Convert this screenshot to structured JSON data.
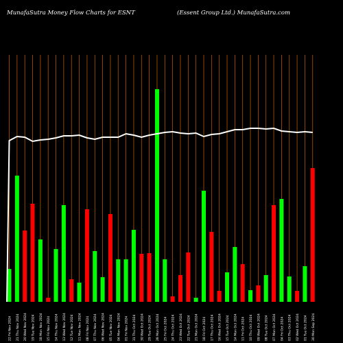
{
  "header": {
    "left": "MunafaSutra  Money Flow  Charts for ESNT",
    "right": "(Essent Group Ltd.) MunafaSutra.com"
  },
  "colors": {
    "background": "#000000",
    "up": "#00ff00",
    "down": "#ff0000",
    "gridline": "#b35900",
    "price_line": "#ffffff"
  },
  "chart_data": {
    "type": "bar",
    "title": "MunafaSutra Money Flow Charts for ESNT",
    "categories": [
      "22 Fri Nov 2024",
      "21 Thu Nov 2024",
      "20 Wed Nov 2024",
      "19 Tue Nov 2024",
      "18 Mon Nov 2024",
      "15 Fri Nov 2024",
      "14 Thu Nov 2024",
      "13 Wed Nov 2024",
      "12 Tue Nov 2024",
      "11 Mon Nov 2024",
      "08 Fri Nov 2024",
      "07 Thu Nov 2024",
      "06 Wed Nov 2024",
      "05 Tue Nov 2024",
      "04 Mon Nov 2024",
      "01 Fri Nov 2024",
      "31 Thu Oct 2024",
      "30 Wed Oct 2024",
      "29 Tue Oct 2024",
      "28 Mon Oct 2024",
      "25 Fri Oct 2024",
      "24 Thu Oct 2024",
      "23 Wed Oct 2024",
      "22 Tue Oct 2024",
      "21 Mon Oct 2024",
      "18 Fri Oct 2024",
      "17 Thu Oct 2024",
      "16 Wed Oct 2024",
      "15 Tue Oct 2024",
      "14 Mon Oct 2024",
      "11 Fri Oct 2024",
      "10 Thu Oct 2024",
      "09 Wed Oct 2024",
      "08 Tue Oct 2024",
      "07 Mon Oct 2024",
      "04 Fri Oct 2024",
      "03 Thu Oct 2024",
      "02 Wed Oct 2024",
      "01 Tue Oct 2024",
      "30 Mon Sep 2024"
    ],
    "bar_colors": [
      "green",
      "green",
      "red",
      "red",
      "green",
      "red",
      "green",
      "green",
      "red",
      "green",
      "red",
      "green",
      "green",
      "red",
      "green",
      "green",
      "green",
      "red",
      "red",
      "green",
      "green",
      "red",
      "red",
      "red",
      "green",
      "green",
      "red",
      "red",
      "green",
      "green",
      "red",
      "green",
      "red",
      "green",
      "red",
      "green",
      "green",
      "red",
      "green",
      "red"
    ],
    "values": [
      48,
      184,
      104,
      143,
      91,
      6,
      77,
      141,
      33,
      28,
      135,
      74,
      36,
      128,
      62,
      62,
      105,
      70,
      71,
      310,
      62,
      8,
      39,
      72,
      6,
      162,
      102,
      16,
      43,
      80,
      55,
      17,
      24,
      39,
      141,
      150,
      37,
      16,
      52,
      195
    ],
    "series_colors_note": "",
    "price_line": [
      235,
      241,
      240,
      234,
      236,
      237,
      239,
      242,
      242,
      243,
      239,
      237,
      240,
      240,
      240,
      245,
      243,
      240,
      243,
      245,
      247,
      248,
      246,
      245,
      246,
      241,
      244,
      245,
      248,
      251,
      251,
      253,
      253,
      252,
      253,
      249,
      248,
      247,
      248,
      247
    ],
    "ylim": [
      0,
      360
    ],
    "grid": true
  }
}
